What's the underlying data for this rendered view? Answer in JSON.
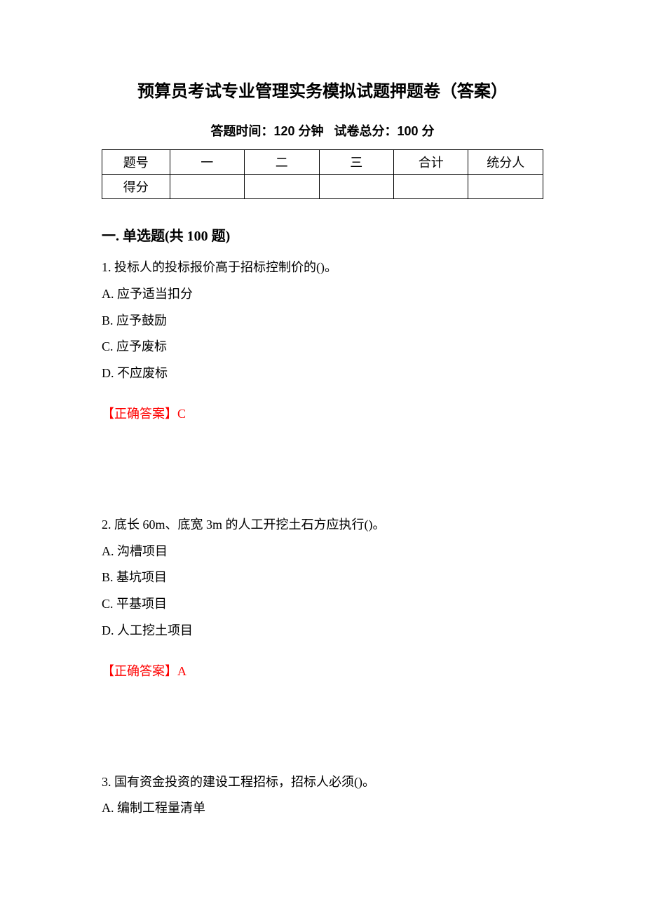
{
  "title": "预算员考试专业管理实务模拟试题押题卷（答案）",
  "subtitle_time_label": "答题时间：",
  "subtitle_time_value": "120 分钟",
  "subtitle_score_label": "试卷总分：",
  "subtitle_score_value": "100 分",
  "score_table": {
    "row1": {
      "h": "题号",
      "c1": "一",
      "c2": "二",
      "c3": "三",
      "c4": "合计",
      "c5": "统分人"
    },
    "row2": {
      "h": "得分",
      "c1": "",
      "c2": "",
      "c3": "",
      "c4": "",
      "c5": ""
    }
  },
  "section_heading": "一. 单选题(共 100 题)",
  "questions": [
    {
      "stem": "1. 投标人的投标报价高于招标控制价的()。",
      "options": [
        "A. 应予适当扣分",
        "B. 应予鼓励",
        "C. 应予废标",
        "D. 不应废标"
      ],
      "answer_label": "【正确答案】",
      "answer_value": "C"
    },
    {
      "stem": "2. 底长 60m、底宽 3m 的人工开挖土石方应执行()。",
      "options": [
        "A. 沟槽项目",
        "B. 基坑项目",
        "C. 平基项目",
        "D. 人工挖土项目"
      ],
      "answer_label": "【正确答案】",
      "answer_value": "A"
    },
    {
      "stem": "3. 国有资金投资的建设工程招标，招标人必须()。",
      "options": [
        "A. 编制工程量清单"
      ],
      "answer_label": "",
      "answer_value": ""
    }
  ]
}
